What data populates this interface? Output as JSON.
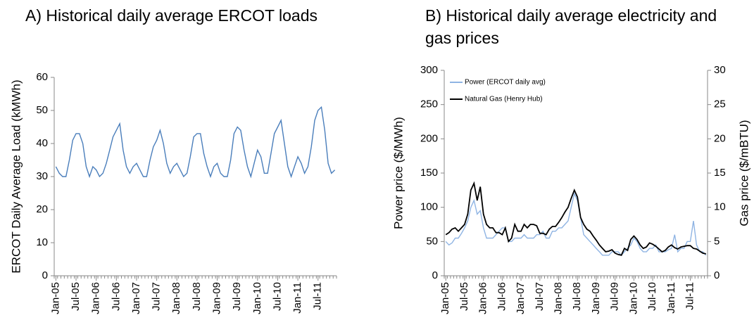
{
  "chart_data": [
    {
      "type": "line",
      "title": "A) Historical daily average ERCOT loads",
      "y_label": "ERCOT Daily Average Load (kMWh)",
      "x": [
        "Jan-05",
        "Feb-05",
        "Mar-05",
        "Apr-05",
        "May-05",
        "Jun-05",
        "Jul-05",
        "Aug-05",
        "Sep-05",
        "Oct-05",
        "Nov-05",
        "Dec-05",
        "Jan-06",
        "Feb-06",
        "Mar-06",
        "Apr-06",
        "May-06",
        "Jun-06",
        "Jul-06",
        "Aug-06",
        "Sep-06",
        "Oct-06",
        "Nov-06",
        "Dec-06",
        "Jan-07",
        "Feb-07",
        "Mar-07",
        "Apr-07",
        "May-07",
        "Jun-07",
        "Jul-07",
        "Aug-07",
        "Sep-07",
        "Oct-07",
        "Nov-07",
        "Dec-07",
        "Jan-08",
        "Feb-08",
        "Mar-08",
        "Apr-08",
        "May-08",
        "Jun-08",
        "Jul-08",
        "Aug-08",
        "Sep-08",
        "Oct-08",
        "Nov-08",
        "Dec-08",
        "Jan-09",
        "Feb-09",
        "Mar-09",
        "Apr-09",
        "May-09",
        "Jun-09",
        "Jul-09",
        "Aug-09",
        "Sep-09",
        "Oct-09",
        "Nov-09",
        "Dec-09",
        "Jan-10",
        "Feb-10",
        "Mar-10",
        "Apr-10",
        "May-10",
        "Jun-10",
        "Jul-10",
        "Aug-10",
        "Sep-10",
        "Oct-10",
        "Nov-10",
        "Dec-10",
        "Jan-11",
        "Feb-11",
        "Mar-11",
        "Apr-11",
        "May-11",
        "Jun-11",
        "Jul-11",
        "Aug-11",
        "Sep-11",
        "Oct-11",
        "Nov-11",
        "Dec-11"
      ],
      "series": [
        {
          "name": "ERCOT daily average load",
          "color": "#4a7ebb",
          "values": [
            33,
            31,
            30,
            30,
            35,
            41,
            43,
            43,
            40,
            33,
            30,
            33,
            32,
            30,
            31,
            34,
            38,
            42,
            44,
            46,
            38,
            33,
            31,
            33,
            34,
            32,
            30,
            30,
            35,
            39,
            41,
            44,
            40,
            34,
            31,
            33,
            34,
            32,
            30,
            31,
            36,
            42,
            43,
            43,
            37,
            33,
            30,
            33,
            34,
            31,
            30,
            30,
            35,
            43,
            45,
            44,
            38,
            33,
            30,
            34,
            38,
            36,
            31,
            31,
            37,
            43,
            45,
            47,
            40,
            33,
            30,
            33,
            36,
            34,
            31,
            33,
            39,
            47,
            50,
            51,
            44,
            34,
            31,
            32
          ]
        }
      ],
      "xticks": [
        "Jan-05",
        "Jul-05",
        "Jan-06",
        "Jul-06",
        "Jan-07",
        "Jul-07",
        "Jan-08",
        "Jul-08",
        "Jan-09",
        "Jul-09",
        "Jan-10",
        "Jul-10",
        "Jan-11",
        "Jul-11"
      ],
      "ylim": [
        0,
        60
      ],
      "yticks": [
        0,
        10,
        20,
        30,
        40,
        50,
        60
      ],
      "grid": false
    },
    {
      "type": "line",
      "title": "B) Historical daily average electricity and gas prices",
      "y_label": "Power price ($/MWh)",
      "y2_label": "Gas price ($/mBTU)",
      "x": [
        "Jan-05",
        "Feb-05",
        "Mar-05",
        "Apr-05",
        "May-05",
        "Jun-05",
        "Jul-05",
        "Aug-05",
        "Sep-05",
        "Oct-05",
        "Nov-05",
        "Dec-05",
        "Jan-06",
        "Feb-06",
        "Mar-06",
        "Apr-06",
        "May-06",
        "Jun-06",
        "Jul-06",
        "Aug-06",
        "Sep-06",
        "Oct-06",
        "Nov-06",
        "Dec-06",
        "Jan-07",
        "Feb-07",
        "Mar-07",
        "Apr-07",
        "May-07",
        "Jun-07",
        "Jul-07",
        "Aug-07",
        "Sep-07",
        "Oct-07",
        "Nov-07",
        "Dec-07",
        "Jan-08",
        "Feb-08",
        "Mar-08",
        "Apr-08",
        "May-08",
        "Jun-08",
        "Jul-08",
        "Aug-08",
        "Sep-08",
        "Oct-08",
        "Nov-08",
        "Dec-08",
        "Jan-09",
        "Feb-09",
        "Mar-09",
        "Apr-09",
        "May-09",
        "Jun-09",
        "Jul-09",
        "Aug-09",
        "Sep-09",
        "Oct-09",
        "Nov-09",
        "Dec-09",
        "Jan-10",
        "Feb-10",
        "Mar-10",
        "Apr-10",
        "May-10",
        "Jun-10",
        "Jul-10",
        "Aug-10",
        "Sep-10",
        "Oct-10",
        "Nov-10",
        "Dec-10",
        "Jan-11",
        "Feb-11",
        "Mar-11",
        "Apr-11",
        "May-11",
        "Jun-11",
        "Jul-11",
        "Aug-11",
        "Sep-11",
        "Oct-11",
        "Nov-11",
        "Dec-11"
      ],
      "series": [
        {
          "name": "Power (ERCOT daily avg)",
          "color": "#8fb4e3",
          "values": [
            50,
            45,
            48,
            55,
            55,
            62,
            70,
            80,
            100,
            110,
            90,
            95,
            70,
            55,
            55,
            55,
            60,
            65,
            70,
            70,
            50,
            50,
            55,
            55,
            55,
            60,
            55,
            55,
            55,
            60,
            60,
            65,
            55,
            55,
            65,
            65,
            70,
            70,
            75,
            80,
            100,
            120,
            110,
            85,
            60,
            55,
            50,
            45,
            40,
            35,
            30,
            30,
            30,
            35,
            35,
            35,
            30,
            35,
            40,
            45,
            55,
            50,
            40,
            35,
            35,
            40,
            40,
            45,
            35,
            35,
            35,
            38,
            40,
            60,
            35,
            40,
            40,
            50,
            50,
            80,
            45,
            35,
            35,
            30
          ]
        },
        {
          "name": "Natural Gas (Henry Hub)",
          "color": "#000000",
          "axis": "y2",
          "values": [
            6,
            6.3,
            6.8,
            7,
            6.5,
            7,
            7.5,
            9,
            12.5,
            13.5,
            11,
            13,
            9,
            7.5,
            7,
            7,
            6.3,
            6.3,
            6,
            7,
            5,
            5.5,
            7.5,
            6.5,
            6.5,
            7.5,
            7,
            7.5,
            7.5,
            7.3,
            6.2,
            6.2,
            6,
            6.8,
            7.2,
            7.2,
            7.8,
            8.5,
            9.3,
            10,
            11.3,
            12.5,
            11.5,
            8.5,
            7.5,
            6.8,
            6.5,
            5.8,
            5.2,
            4.5,
            4,
            3.5,
            3.6,
            3.8,
            3.3,
            3.1,
            3,
            4,
            3.7,
            5.3,
            5.8,
            5.3,
            4.5,
            4,
            4.2,
            4.8,
            4.6,
            4.3,
            3.9,
            3.5,
            3.7,
            4.2,
            4.5,
            4.1,
            3.9,
            4.2,
            4.3,
            4.4,
            4.4,
            4,
            3.9,
            3.6,
            3.3,
            3.2
          ]
        }
      ],
      "xticks": [
        "Jan-05",
        "Jul-05",
        "Jan-06",
        "Jul-06",
        "Jan-07",
        "Jul-07",
        "Jan-08",
        "Jul-08",
        "Jan-09",
        "Jul-09",
        "Jan-10",
        "Jul-10",
        "Jan-11",
        "Jul-11"
      ],
      "ylim": [
        0,
        300
      ],
      "yticks": [
        0,
        50,
        100,
        150,
        200,
        250,
        300
      ],
      "y2lim": [
        0,
        30
      ],
      "y2ticks": [
        0,
        5,
        10,
        15,
        20,
        25,
        30
      ],
      "grid": false,
      "legend": "top-left"
    }
  ]
}
